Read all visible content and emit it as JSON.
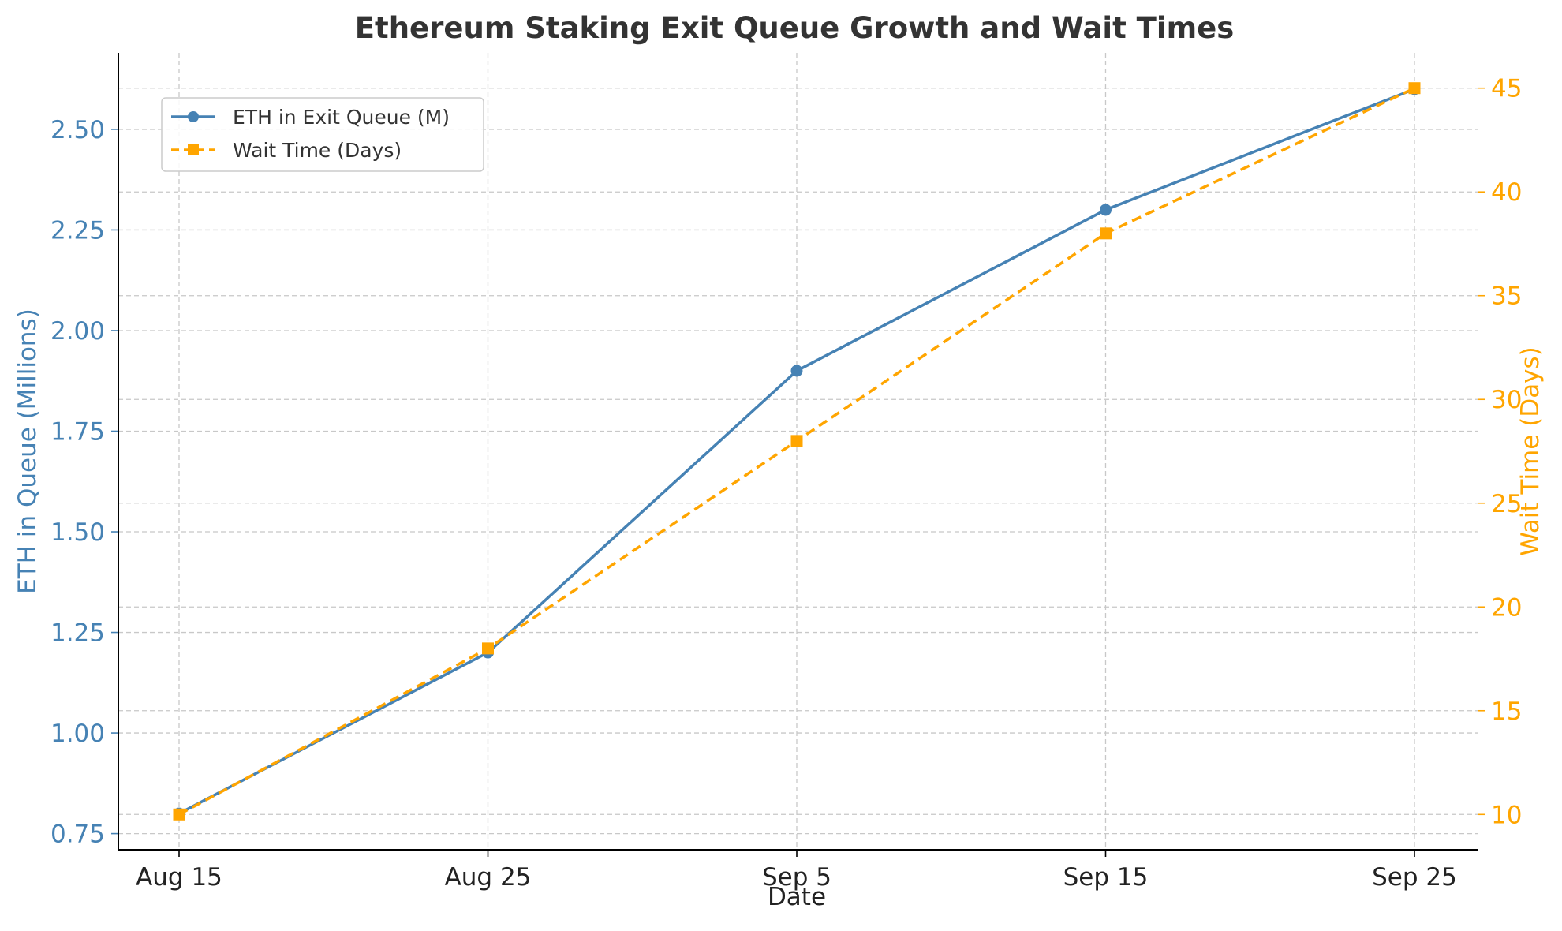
{
  "chart_data": {
    "type": "line",
    "title": "Ethereum Staking Exit Queue Growth and Wait Times",
    "xlabel": "Date",
    "ylabel_left": "ETH in Queue (Millions)",
    "ylabel_right": "Wait Time (Days)",
    "categories": [
      "Aug 15",
      "Aug 25",
      "Sep 5",
      "Sep 15",
      "Sep 25"
    ],
    "ylim_left": [
      0.71,
      2.69
    ],
    "ylim_right": [
      8.3,
      46.7
    ],
    "yticks_left": [
      0.75,
      1.0,
      1.25,
      1.5,
      1.75,
      2.0,
      2.25,
      2.5
    ],
    "yticks_right": [
      10,
      15,
      20,
      25,
      30,
      35,
      40,
      45
    ],
    "grid": true,
    "legend_position": "top-left",
    "series": [
      {
        "name": "ETH in Exit Queue (M)",
        "axis": "left",
        "color": "#4682b4",
        "marker": "circle",
        "line_style": "solid",
        "values": [
          0.8,
          1.2,
          1.9,
          2.3,
          2.6
        ]
      },
      {
        "name": "Wait Time (Days)",
        "axis": "right",
        "color": "#ffa500",
        "marker": "square",
        "line_style": "dashed",
        "values": [
          10,
          18,
          28,
          38,
          45
        ]
      }
    ],
    "left_axis_color": "#4682b4",
    "right_axis_color": "#ffa500"
  }
}
